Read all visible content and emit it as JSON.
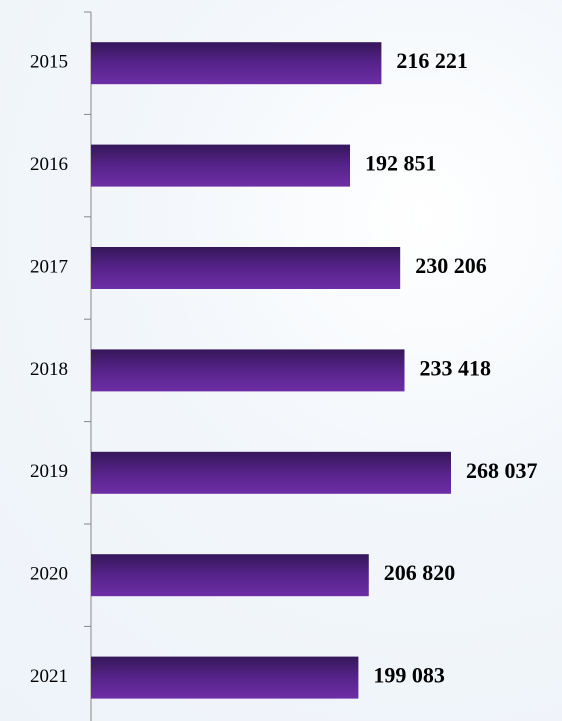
{
  "chart_data": {
    "type": "barh",
    "categories": [
      "2015",
      "2016",
      "2017",
      "2018",
      "2019",
      "2020",
      "2021"
    ],
    "values": [
      216221,
      192851,
      230206,
      233418,
      268037,
      206820,
      199083
    ],
    "value_labels": [
      "216 221",
      "192 851",
      "230 206",
      "233 418",
      "268 037",
      "206 820",
      "199 083"
    ],
    "color": "#5a2590"
  }
}
